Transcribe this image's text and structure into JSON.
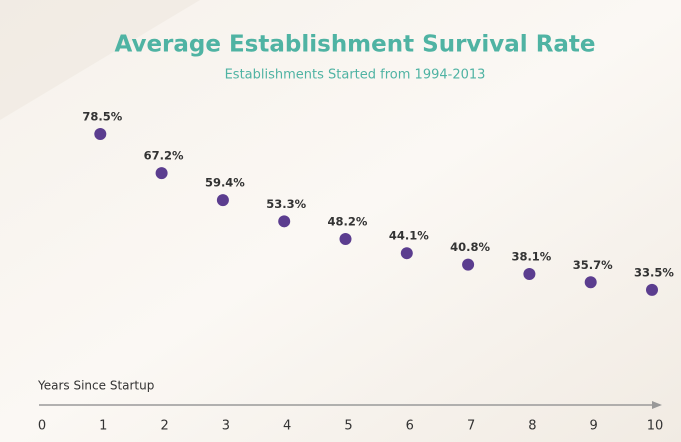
{
  "chart_data": {
    "type": "scatter",
    "title": "Average Establishment Survival Rate",
    "subtitle": "Establishments Started from 1994-2013",
    "x_label": "Years Since Startup",
    "x": [
      1,
      2,
      3,
      4,
      5,
      6,
      7,
      8,
      9,
      10
    ],
    "values": [
      78.5,
      67.2,
      59.4,
      53.3,
      48.2,
      44.1,
      40.8,
      38.1,
      35.7,
      33.5
    ],
    "value_labels": [
      "78.5%",
      "67.2%",
      "59.4%",
      "53.3%",
      "48.2%",
      "44.1%",
      "40.8%",
      "38.1%",
      "35.7%",
      "33.5%"
    ],
    "color": "#5b3d8f",
    "xlim": [
      0,
      10
    ],
    "xticks": [
      0,
      1,
      2,
      3,
      4,
      5,
      6,
      7,
      8,
      9,
      10
    ],
    "ylim": [
      0,
      100
    ]
  }
}
